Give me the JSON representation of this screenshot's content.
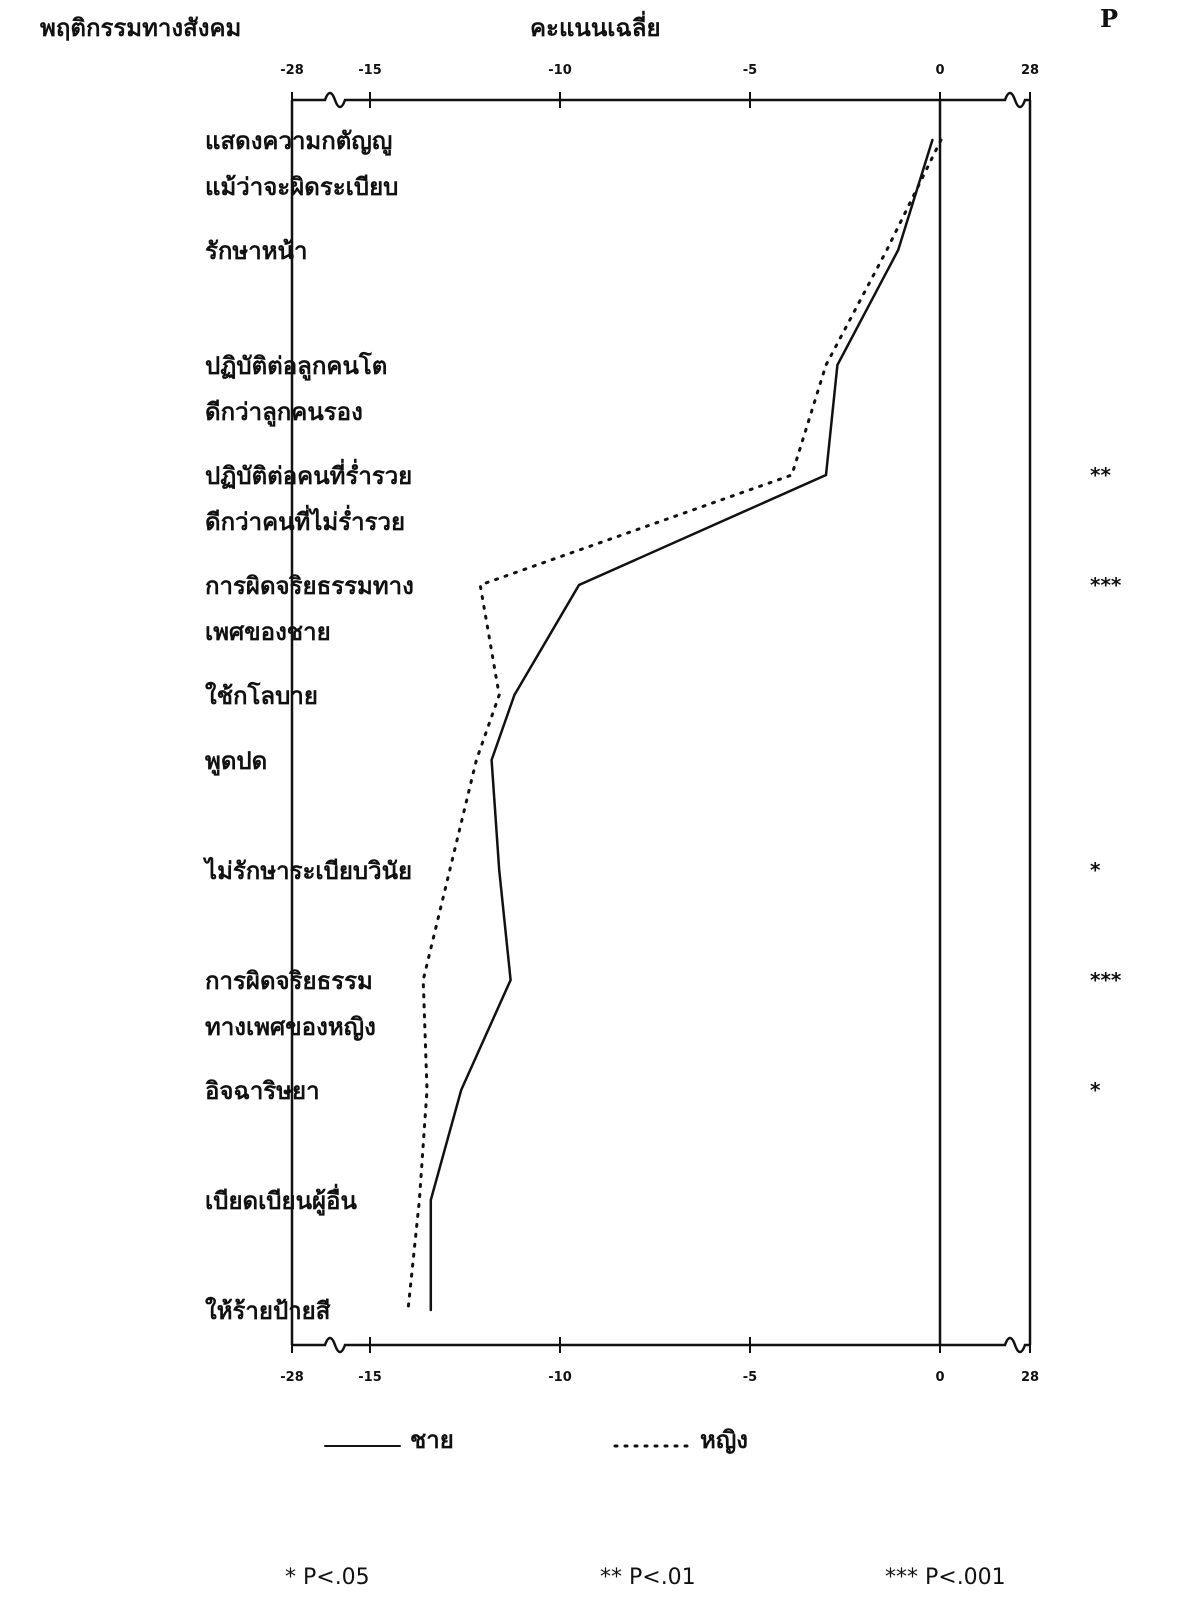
{
  "chart_data": {
    "type": "line",
    "orientation": "horizontal",
    "y_axis_label": "พฤติกรรมทางสังคม",
    "x_axis_label": "คะแนนเฉลี่ย",
    "significance_label": "P",
    "categories": [
      "แสดงความกตัญญู\nแม้ว่าจะผิดระเบียบ",
      "รักษาหน้า",
      "ปฏิบัติต่อลูกคนโต\nดีกว่าลูกคนรอง",
      "ปฏิบัติต่อคนที่ร่ำรวย\nดีกว่าคนที่ไม่ร่ำรวย",
      "การผิดจริยธรรมทาง\nเพศของชาย",
      "ใช้กโลบาย",
      "พูดปด",
      "ไม่รักษาระเบียบวินัย",
      "การผิดจริยธรรม\nทางเพศของหญิง",
      "อิจฉาริษยา",
      "เบียดเบียนผู้อื่น",
      "ให้ร้ายป้ายสี"
    ],
    "series": [
      {
        "name": "ชาย",
        "color": "#111111",
        "dash": "solid",
        "values": [
          -0.2,
          -1.1,
          -2.7,
          -3.0,
          -9.5,
          -11.2,
          -11.8,
          -11.6,
          -11.3,
          -12.6,
          -13.4,
          -13.4
        ]
      },
      {
        "name": "หญิง",
        "color": "#111111",
        "dash": "dotted",
        "values": [
          0.3,
          -1.4,
          -3.0,
          -3.9,
          -12.1,
          -11.6,
          -12.2,
          -12.9,
          -13.6,
          -13.5,
          -13.7,
          -14.0
        ]
      }
    ],
    "significance": [
      null,
      null,
      null,
      "**",
      "***",
      null,
      null,
      "*",
      "***",
      "*",
      null,
      null
    ],
    "xlim": [
      -28,
      28
    ],
    "xticks": [
      -28,
      -15,
      -10,
      -5,
      0,
      28
    ],
    "axis_break": true,
    "footnotes": [
      "* P<.05",
      "** P<.01",
      "*** P<.001"
    ]
  }
}
